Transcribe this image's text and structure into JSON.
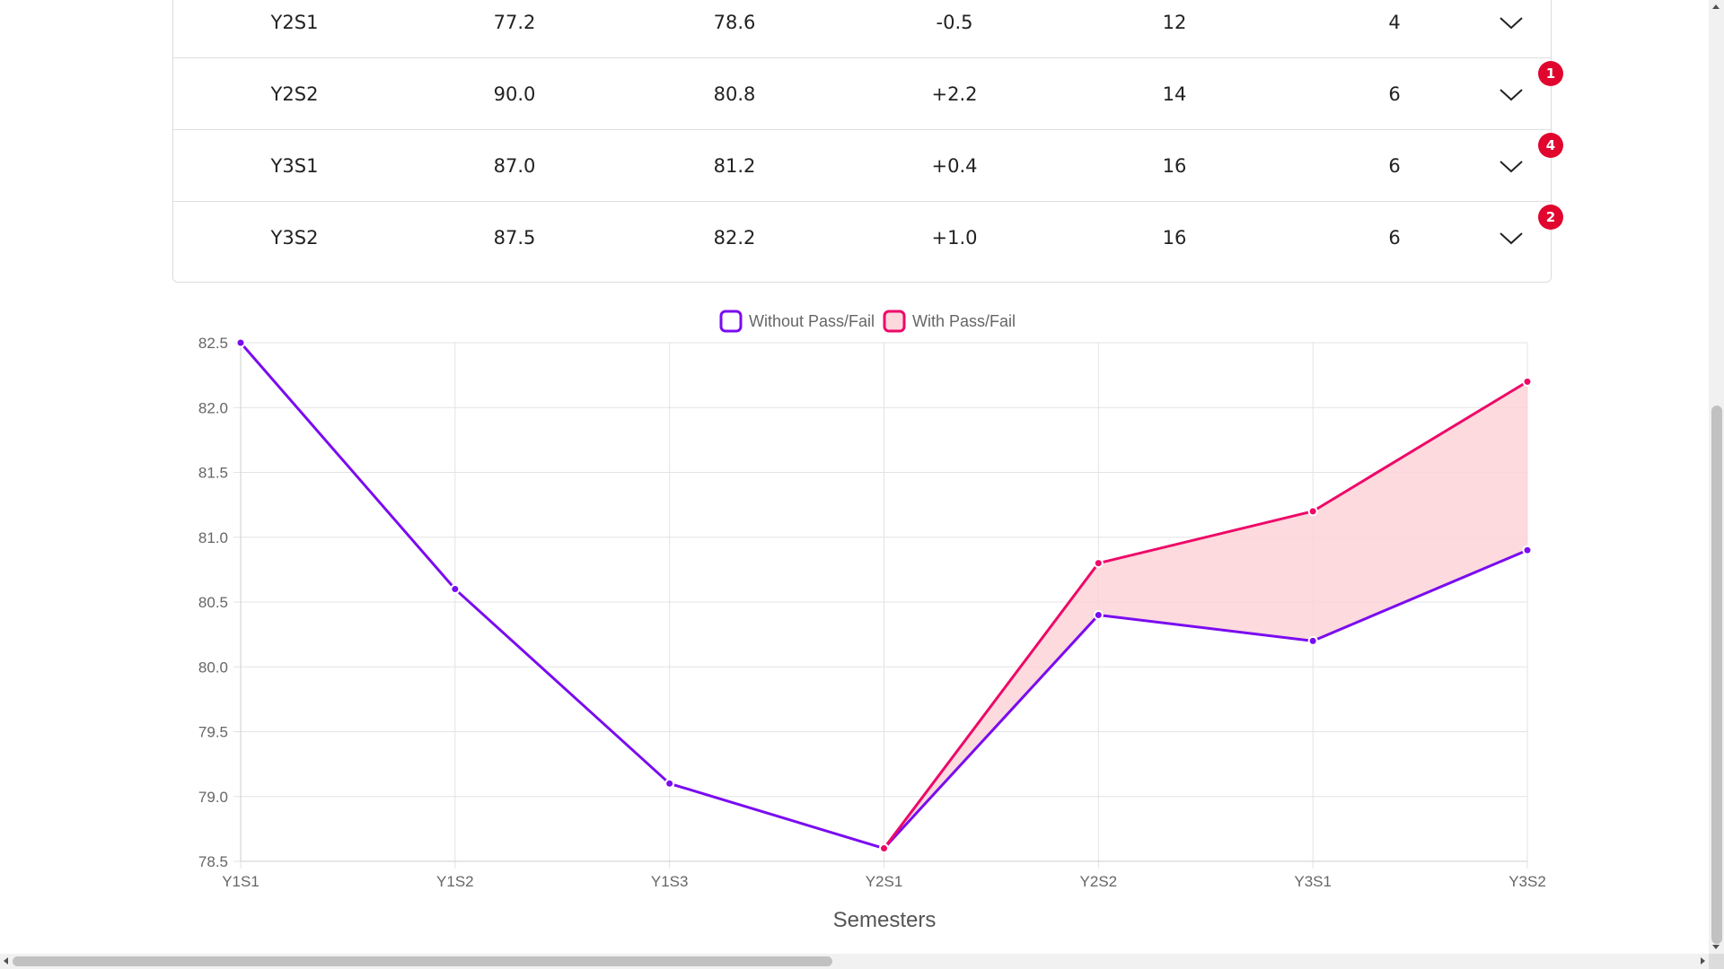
{
  "table": {
    "rows": [
      {
        "semester": "Y2S1",
        "c1": "77.2",
        "c2": "78.6",
        "diff": "-0.5",
        "c4": "12",
        "c5": "4",
        "badge": ""
      },
      {
        "semester": "Y2S2",
        "c1": "90.0",
        "c2": "80.8",
        "diff": "+2.2",
        "c4": "14",
        "c5": "6",
        "badge": "1"
      },
      {
        "semester": "Y3S1",
        "c1": "87.0",
        "c2": "81.2",
        "diff": "+0.4",
        "c4": "16",
        "c5": "6",
        "badge": "4"
      },
      {
        "semester": "Y3S2",
        "c1": "87.5",
        "c2": "82.2",
        "diff": "+1.0",
        "c4": "16",
        "c5": "6",
        "badge": "2"
      }
    ]
  },
  "chart_data": {
    "type": "line",
    "title": "",
    "xlabel": "Semesters",
    "ylabel": "",
    "categories": [
      "Y1S1",
      "Y1S2",
      "Y1S3",
      "Y2S1",
      "Y2S2",
      "Y3S1",
      "Y3S2"
    ],
    "ylim": [
      78.5,
      82.5
    ],
    "yticks": [
      "82.5",
      "82.0",
      "81.5",
      "81.0",
      "80.5",
      "80.0",
      "79.5",
      "79.0",
      "78.5"
    ],
    "grid": true,
    "legend_position": "top-center",
    "fill_between": {
      "color": "#fcd3d7"
    },
    "series": [
      {
        "name": "Without Pass/Fail",
        "color": "#7a0cf0",
        "values": [
          82.5,
          80.6,
          79.1,
          78.6,
          80.4,
          80.2,
          80.9
        ]
      },
      {
        "name": "With Pass/Fail",
        "color": "#ee0868",
        "values": [
          null,
          null,
          null,
          78.6,
          80.8,
          81.2,
          82.2
        ]
      }
    ]
  },
  "colors": {
    "badge": "#e0062e",
    "grid": "#e3e3e3",
    "axis_text": "#666666"
  }
}
